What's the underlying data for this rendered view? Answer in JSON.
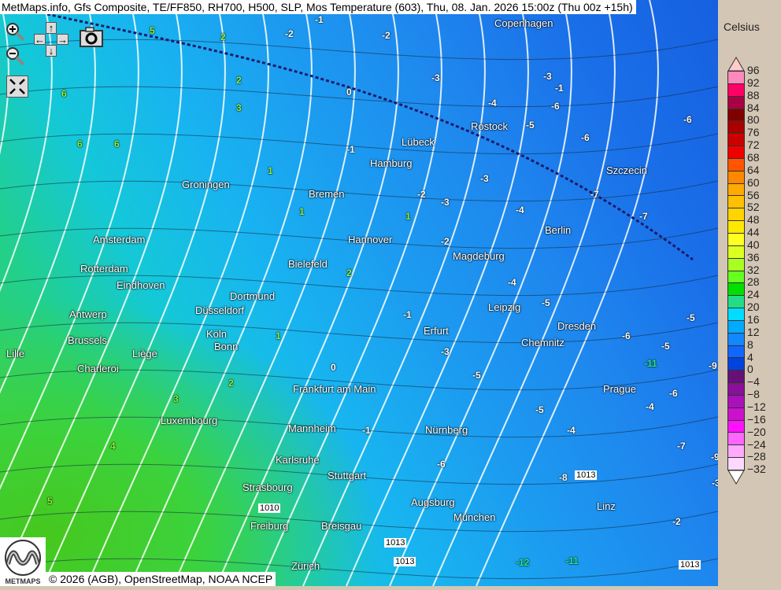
{
  "title": "MetMaps.info, Gfs Composite, TE/FF850, RH700, H500, SLP, Mos Temperature (603), Thu, 08. Jan. 2026 15:00z (Thu 00z +15h)",
  "controls": {
    "zoom_in": "zoom-in-icon",
    "zoom_out": "zoom-out-icon",
    "pan_up": "↑",
    "pan_down": "↓",
    "pan_left": "←",
    "pan_right": "→",
    "screenshot": "camera-icon",
    "fullscreen": "fullscreen-icon"
  },
  "cities": [
    "Copenhagen",
    "Rostock",
    "Lübeck",
    "Hamburg",
    "Szczecin",
    "Groningen",
    "Bremen",
    "Amsterdam",
    "Hannover",
    "Berlin",
    "Rotterdam",
    "Bielefeld",
    "Magdeburg",
    "Eindhoven",
    "Dortmund",
    "Antwerp",
    "Düsseldorf",
    "Leipzig",
    "Dresden",
    "Brussels",
    "Köln",
    "Bonn",
    "Lille",
    "Liège",
    "Erfurt",
    "Chemnitz",
    "Charleroi",
    "Frankfurt am Main",
    "Prague",
    "Luxembourg",
    "Mannheim",
    "Nürnberg",
    "Karlsruhe",
    "Stuttgart",
    "Strasbourg",
    "Augsburg",
    "Linz",
    "Freiburg",
    "Breisgau",
    "München",
    "Zürich"
  ],
  "temperatures": [
    "5",
    "2",
    "6",
    "6",
    "6",
    "3",
    "2",
    "1",
    "-1",
    "-2",
    "-2",
    "-3",
    "-4",
    "-5",
    "-6",
    "-6",
    "-7",
    "-7",
    "-6",
    "-1",
    "-3",
    "-4",
    "-5",
    "-5",
    "-6",
    "-9",
    "-11",
    "-6",
    "-5",
    "-4",
    "-3",
    "-2",
    "-1",
    "0",
    "1",
    "2",
    "3",
    "4",
    "5",
    "0",
    "-1",
    "-2",
    "-3",
    "-4",
    "-5",
    "-6",
    "-8",
    "-12",
    "-11",
    "-9",
    "-3",
    "-2",
    "1",
    "2",
    "1",
    "-1",
    "-3",
    "-5",
    "-7",
    "-4"
  ],
  "pressure_labels": [
    "1013",
    "1010",
    "1013",
    "1013",
    "1013"
  ],
  "footer": "© 2026 (AGB), OpenStreetMap, NOAA NCEP",
  "logo_text": "METMAPS",
  "legend": {
    "title": "Celsius",
    "labels": [
      "96",
      "92",
      "88",
      "84",
      "80",
      "76",
      "72",
      "68",
      "64",
      "60",
      "56",
      "52",
      "48",
      "44",
      "40",
      "36",
      "32",
      "28",
      "24",
      "20",
      "16",
      "12",
      "8",
      "4",
      "0",
      "−4",
      "−8",
      "−12",
      "−16",
      "−20",
      "−24",
      "−28",
      "−32"
    ],
    "colors": [
      "#ff88bb",
      "#ff0066",
      "#aa0044",
      "#800000",
      "#aa0000",
      "#cc0000",
      "#ee0000",
      "#ff5500",
      "#ff8800",
      "#ffaa00",
      "#ffc000",
      "#ffd400",
      "#ffe800",
      "#ffff22",
      "#ddff22",
      "#aaff22",
      "#66ff22",
      "#00e000",
      "#22dd88",
      "#00ddff",
      "#00aaff",
      "#1188ff",
      "#1166ff",
      "#0044dd",
      "#661177",
      "#881199",
      "#aa11bb",
      "#cc11cc",
      "#ff11ff",
      "#ff66ff",
      "#ffaaff",
      "#ffd8ff"
    ],
    "top_arrow_color": "#ffcccc",
    "bottom_arrow_color": "#ffffff"
  }
}
